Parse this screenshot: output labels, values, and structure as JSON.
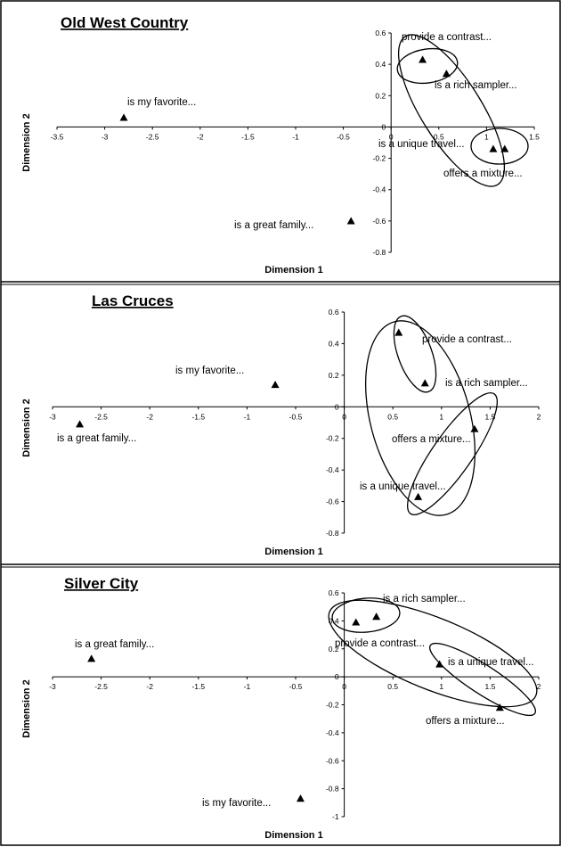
{
  "chart_data": [
    {
      "type": "scatter",
      "title": "Old West Country",
      "xlabel": "Dimension 1",
      "ylabel": "Dimension 2",
      "xlim": [
        -3.5,
        1.5
      ],
      "ylim": [
        -0.8,
        0.6
      ],
      "xticks": [
        "-3.5",
        "-3",
        "-2.5",
        "-2",
        "-1.5",
        "-1",
        "-0.5",
        "0",
        "0.5",
        "1",
        "1.5"
      ],
      "yticks": [
        "0.6",
        "0.4",
        "0.2",
        "0",
        "-0.2",
        "-0.4",
        "-0.6",
        "-0.8"
      ],
      "points": [
        {
          "label": "is my favorite...",
          "x": -2.8,
          "y": 0.06
        },
        {
          "label": "is a great family...",
          "x": -0.42,
          "y": -0.6
        },
        {
          "label": "provide a contrast...",
          "x": 0.33,
          "y": 0.43
        },
        {
          "label": "is a rich sampler...",
          "x": 0.58,
          "y": 0.34
        },
        {
          "label": "is a unique travel...",
          "x": 1.07,
          "y": -0.14
        },
        {
          "label": "offers a mixture...",
          "x": 1.19,
          "y": -0.14
        }
      ],
      "groups": [
        [
          "provide a contrast...",
          "is a rich sampler..."
        ],
        [
          "is a unique travel...",
          "offers a mixture..."
        ],
        [
          "provide a contrast...",
          "is a rich sampler...",
          "is a unique travel...",
          "offers a mixture..."
        ]
      ]
    },
    {
      "type": "scatter",
      "title": "Las Cruces",
      "xlabel": "Dimension 1",
      "ylabel": "Dimension 2",
      "xlim": [
        -3,
        2
      ],
      "ylim": [
        -0.8,
        0.6
      ],
      "xticks": [
        "-3",
        "-2.5",
        "-2",
        "-1.5",
        "-1",
        "-0.5",
        "0",
        "0.5",
        "1",
        "1.5",
        "2"
      ],
      "yticks": [
        "0.6",
        "0.4",
        "0.2",
        "0",
        "-0.2",
        "-0.4",
        "-0.6",
        "-0.8"
      ],
      "points": [
        {
          "label": "is my favorite...",
          "x": -2.72,
          "y": -0.11
        },
        {
          "label": "is a great family...",
          "x": -0.71,
          "y": 0.14
        },
        {
          "label": "provide a contrast...",
          "x": 0.56,
          "y": 0.47
        },
        {
          "label": "is a rich sampler...",
          "x": 0.83,
          "y": 0.15
        },
        {
          "label": "offers a mixture...",
          "x": 1.34,
          "y": -0.14
        },
        {
          "label": "is a unique travel...",
          "x": 0.76,
          "y": -0.57
        }
      ],
      "groups": [
        [
          "provide a contrast...",
          "is a rich sampler..."
        ],
        [
          "offers a mixture...",
          "is a unique travel..."
        ],
        [
          "provide a contrast...",
          "is a rich sampler...",
          "offers a mixture...",
          "is a unique travel..."
        ]
      ]
    },
    {
      "type": "scatter",
      "title": "Silver City",
      "xlabel": "Dimension 1",
      "ylabel": "Dimension 2",
      "xlim": [
        -3,
        2
      ],
      "ylim": [
        -1,
        0.6
      ],
      "xticks": [
        "-3",
        "-2.5",
        "-2",
        "-1.5",
        "-1",
        "-0.5",
        "0",
        "0.5",
        "1",
        "1.5",
        "2"
      ],
      "yticks": [
        "0.6",
        "0.4",
        "0.2",
        "0",
        "-0.2",
        "-0.4",
        "-0.6",
        "-0.8",
        "-1"
      ],
      "points": [
        {
          "label": "is my favorite...",
          "x": -2.6,
          "y": 0.13
        },
        {
          "label": "is a great family...",
          "x": -0.45,
          "y": -0.87
        },
        {
          "label": "is a rich sampler...",
          "x": 0.33,
          "y": 0.43
        },
        {
          "label": "provide a contrast...",
          "x": 0.12,
          "y": 0.39
        },
        {
          "label": "is a unique travel...",
          "x": 0.98,
          "y": 0.09
        },
        {
          "label": "offers a mixture...",
          "x": 1.6,
          "y": -0.22
        }
      ],
      "groups": [
        [
          "is a rich sampler...",
          "provide a contrast..."
        ],
        [
          "is a unique travel...",
          "offers a mixture..."
        ],
        [
          "is a rich sampler...",
          "provide a contrast...",
          "is a unique travel...",
          "offers a mixture..."
        ]
      ]
    }
  ]
}
